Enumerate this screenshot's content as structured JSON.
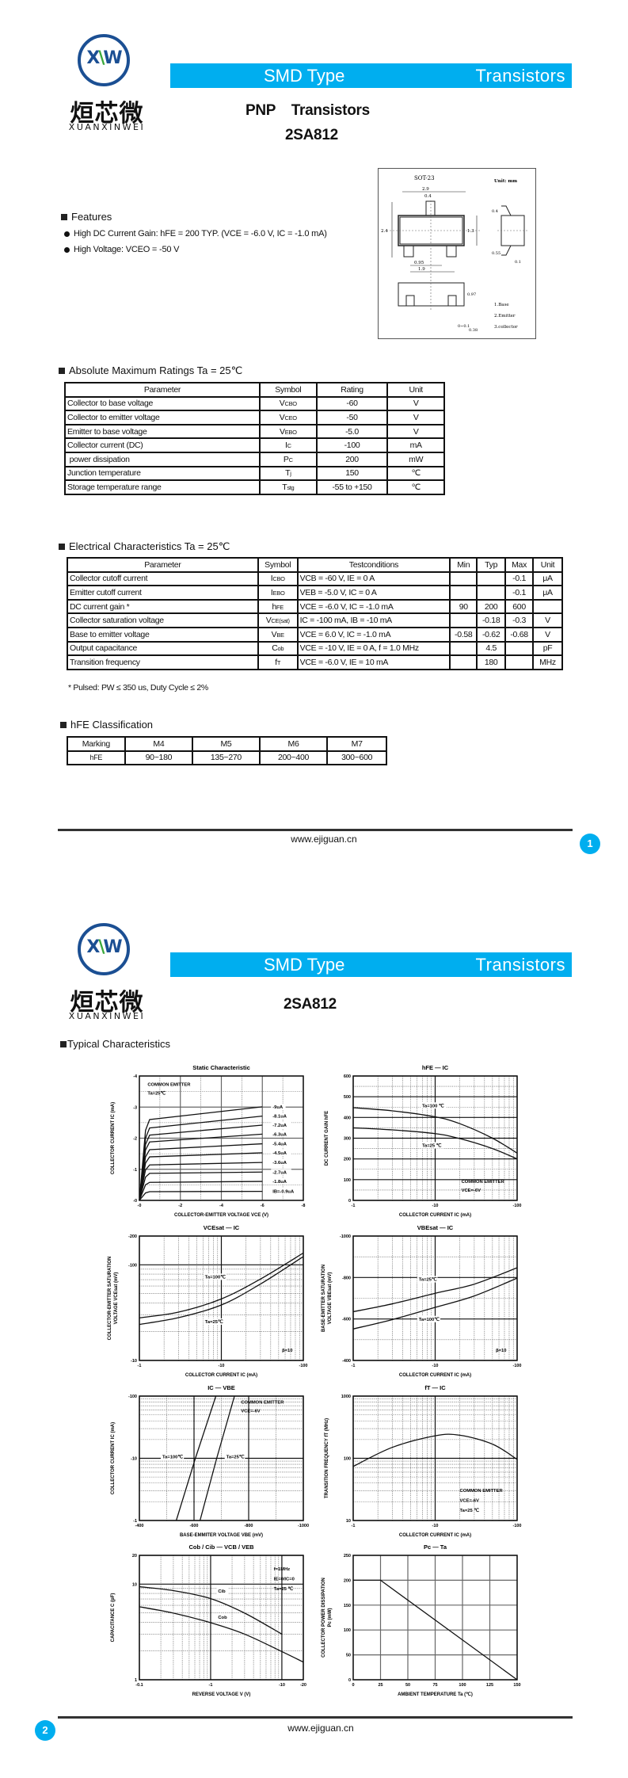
{
  "brand": {
    "logo_mark": "XW",
    "logo_cn": "烜芯微",
    "logo_en": "XUANXINWEI",
    "color": "#1b4f93",
    "accent": "#00aeef"
  },
  "banner": {
    "left": "SMD Type",
    "right": "Transistors"
  },
  "page1": {
    "type_title": "PNP    Transistors",
    "part": "2SA812",
    "package": {
      "name": "SOT-23",
      "unit": "Unit: mm",
      "dims": [
        "2.9",
        "0.4",
        "2.4",
        "1.3",
        "0.95",
        "1.9",
        "0.4",
        "0.55",
        "0.1",
        "0.97",
        "0~0.1",
        "0.38"
      ],
      "pins": [
        "1.Base",
        "2.Emitter",
        "3.collector"
      ]
    },
    "features": {
      "heading": "Features",
      "items": [
        "High DC Current Gain: hFE = 200 TYP. (VCE = -6.0 V, IC = -1.0 mA)",
        "High Voltage: VCEO = -50 V"
      ]
    },
    "abs_max": {
      "heading": "Absolute Maximum Ratings Ta = 25℃",
      "headers": [
        "Parameter",
        "Symbol",
        "Rating",
        "Unit"
      ],
      "rows": [
        {
          "param": "Collector to base voltage",
          "sym": "V",
          "sub": "CBO",
          "rating": "-60",
          "unit": "V"
        },
        {
          "param": "Collector to emitter voltage",
          "sym": "V",
          "sub": "CEO",
          "rating": "-50",
          "unit": "V"
        },
        {
          "param": "Emitter to base voltage",
          "sym": "V",
          "sub": "EBO",
          "rating": "-5.0",
          "unit": "V"
        },
        {
          "param": "Collector current (DC)",
          "sym": "I",
          "sub": "C",
          "rating": "-100",
          "unit": "mA"
        },
        {
          "param": " power dissipation",
          "sym": "P",
          "sub": "C",
          "rating": "200",
          "unit": "mW"
        },
        {
          "param": "Junction temperature",
          "sym": "T",
          "sub": "j",
          "rating": "150",
          "unit": "℃"
        },
        {
          "param": "Storage temperature range",
          "sym": "T",
          "sub": "stg",
          "rating": "-55 to +150",
          "unit": "℃"
        }
      ]
    },
    "elec": {
      "heading": "Electrical Characteristics Ta = 25℃",
      "headers": [
        "Parameter",
        "Symbol",
        "Testconditions",
        "Min",
        "Typ",
        "Max",
        "Unit"
      ],
      "rows": [
        {
          "param": "Collector cutoff current",
          "sym": "I",
          "sub": "CBO",
          "cond": "VCB = -60 V, IE = 0 A",
          "min": "",
          "typ": "",
          "max": "-0.1",
          "unit": "μA"
        },
        {
          "param": "Emitter cutoff current",
          "sym": "I",
          "sub": "EBO",
          "cond": "VEB = -5.0 V, IC = 0 A",
          "min": "",
          "typ": "",
          "max": "-0.1",
          "unit": "μA"
        },
        {
          "param": "DC current gain *",
          "sym": "h",
          "sub": "FE",
          "cond": "VCE = -6.0 V, IC = -1.0  mA",
          "min": "90",
          "typ": "200",
          "max": "600",
          "unit": ""
        },
        {
          "param": "Collector saturation voltage",
          "sym": "V",
          "sub": "CE(sat)",
          "cond": "IC = -100 mA, IB = -10 mA",
          "min": "",
          "typ": "-0.18",
          "max": "-0.3",
          "unit": "V"
        },
        {
          "param": "Base to emitter voltage",
          "sym": "V",
          "sub": "BE",
          "cond": "VCE = 6.0 V, IC = -1.0 mA",
          "min": "-0.58",
          "typ": "-0.62",
          "max": "-0.68",
          "unit": "V"
        },
        {
          "param": "Output capacitance",
          "sym": "C",
          "sub": "ob",
          "cond": "VCE = -10 V, IE = 0 A, f = 1.0 MHz",
          "min": "",
          "typ": "4.5",
          "max": "",
          "unit": "pF"
        },
        {
          "param": "Transition frequency",
          "sym": "f",
          "sub": "T",
          "cond": "VCE = -6.0 V, IE = 10 mA",
          "min": "",
          "typ": "180",
          "max": "",
          "unit": "MHz"
        }
      ],
      "footnote": "* Pulsed: PW ≤ 350  us, Duty Cycle ≤ 2%"
    },
    "hfe_class": {
      "heading": "hFE Classification",
      "row1": [
        "Marking",
        "M4",
        "M5",
        "M6",
        "M7"
      ],
      "row2": [
        "hFE",
        "90~180",
        "135~270",
        "200~400",
        "300~600"
      ]
    },
    "footer": {
      "url": "www.ejiguan.cn",
      "page": "1"
    }
  },
  "page2": {
    "part": "2SA812",
    "heading": "Typical Characteristics",
    "footer": {
      "url": "www.ejiguan.cn",
      "page": "2"
    }
  },
  "chart_data": [
    {
      "type": "line",
      "title": "Static Characteristic",
      "xlabel": "COLLECTOR-EMITTER VOLTAGE  VCE  (V)",
      "ylabel": [
        "COLLECTOR CURRENT  IC  (mA)"
      ],
      "xscale": "linear",
      "yscale": "linear",
      "xlim": [
        0,
        -8
      ],
      "ylim": [
        0,
        -4
      ],
      "xticks": [
        0,
        -2,
        -4,
        -6,
        -8
      ],
      "xticklabels": [
        "-0",
        "-2",
        "-4",
        "-6",
        "-8"
      ],
      "yticks": [
        0,
        -1,
        -2,
        -3,
        -4
      ],
      "yticklabels": [
        "-0",
        "-1",
        "-2",
        "-3",
        "-4"
      ],
      "grid": true,
      "notes": [
        "COMMON EMITTER",
        "Ta=25℃"
      ],
      "series": [
        {
          "name": "-9uA",
          "points": [
            [
              0,
              0
            ],
            [
              -0.3,
              -2.25
            ],
            [
              -0.5,
              -2.6
            ],
            [
              -6,
              -3.01
            ]
          ]
        },
        {
          "name": "-8.1uA",
          "points": [
            [
              0,
              0
            ],
            [
              -0.3,
              -2.0
            ],
            [
              -0.5,
              -2.33
            ],
            [
              -6,
              -2.71
            ]
          ]
        },
        {
          "name": "-7.2uA",
          "points": [
            [
              0,
              0
            ],
            [
              -0.3,
              -1.8
            ],
            [
              -0.5,
              -2.1
            ],
            [
              -6,
              -2.42
            ]
          ]
        },
        {
          "name": "-6.3uA",
          "points": [
            [
              0,
              0
            ],
            [
              -0.3,
              -1.62
            ],
            [
              -0.5,
              -1.88
            ],
            [
              -6,
              -2.13
            ]
          ]
        },
        {
          "name": "-5.4uA",
          "points": [
            [
              0,
              0
            ],
            [
              -0.3,
              -1.4
            ],
            [
              -0.5,
              -1.63
            ],
            [
              -6,
              -1.82
            ]
          ]
        },
        {
          "name": "-4.5uA",
          "points": [
            [
              0,
              0
            ],
            [
              -0.3,
              -1.2
            ],
            [
              -0.5,
              -1.4
            ],
            [
              -6,
              -1.53
            ]
          ]
        },
        {
          "name": "-3.6uA",
          "points": [
            [
              0,
              0
            ],
            [
              -0.3,
              -0.98
            ],
            [
              -0.5,
              -1.14
            ],
            [
              -6,
              -1.22
            ]
          ]
        },
        {
          "name": "-2.7uA",
          "points": [
            [
              0,
              0
            ],
            [
              -0.3,
              -0.75
            ],
            [
              -0.5,
              -0.87
            ],
            [
              -6,
              -0.91
            ]
          ]
        },
        {
          "name": "-1.8uA",
          "points": [
            [
              0,
              0
            ],
            [
              -0.3,
              -0.5
            ],
            [
              -0.5,
              -0.58
            ],
            [
              -6,
              -0.61
            ]
          ]
        },
        {
          "name": "IB=-0.9uA",
          "points": [
            [
              0,
              0
            ],
            [
              -0.3,
              -0.24
            ],
            [
              -0.5,
              -0.28
            ],
            [
              -6,
              -0.29
            ]
          ]
        }
      ]
    },
    {
      "type": "line",
      "title": "hFE  —  IC",
      "xlabel": "COLLECTOR CURRENT  IC  (mA)",
      "ylabel": [
        "DC CURRENT GAIN  hFE"
      ],
      "xscale": "log",
      "yscale": "linear",
      "xlim": [
        -1,
        -100
      ],
      "ylim": [
        0,
        600
      ],
      "xticks": [
        -1,
        -10,
        -100
      ],
      "xticklabels": [
        "-1",
        "-10",
        "-100"
      ],
      "yticks": [
        0,
        100,
        200,
        300,
        400,
        500,
        600
      ],
      "yticklabels": [
        "0",
        "100",
        "200",
        "300",
        "400",
        "500",
        "600"
      ],
      "grid": true,
      "notes": [
        "COMMON EMITTER",
        "VCE=-6V"
      ],
      "series": [
        {
          "name": "Ta=100 ℃",
          "points": [
            [
              -1,
              447
            ],
            [
              -3,
              432
            ],
            [
              -10,
              403
            ],
            [
              -20,
              370
            ],
            [
              -50,
              300
            ],
            [
              -100,
              228
            ]
          ]
        },
        {
          "name": "Ta=25 ℃",
          "points": [
            [
              -1,
              350
            ],
            [
              -3,
              340
            ],
            [
              -10,
              322
            ],
            [
              -20,
              298
            ],
            [
              -50,
              250
            ],
            [
              -100,
              200
            ]
          ]
        }
      ]
    },
    {
      "type": "line",
      "title": "VCEsat  —  IC",
      "xlabel": "COLLECTOR CURRENT  IC  (mA)",
      "ylabel": [
        "COLLECTOR-EMITTER SATURATION",
        "VOLTAGE  VCEsat  (mV)"
      ],
      "xscale": "log",
      "yscale": "log",
      "xlim": [
        -1,
        -100
      ],
      "ylim": [
        -10,
        -200
      ],
      "xticks": [
        -1,
        -10,
        -100
      ],
      "xticklabels": [
        "-1",
        "-10",
        "-100"
      ],
      "yticks": [
        -10,
        -100,
        -200
      ],
      "yticklabels": [
        "-10",
        "-100",
        "-200"
      ],
      "grid": true,
      "notes": [
        "β=10"
      ],
      "series": [
        {
          "name": "Ta=100℃",
          "points": [
            [
              -1,
              -27.9
            ],
            [
              -3,
              -32
            ],
            [
              -10,
              -44
            ],
            [
              -30,
              -71
            ],
            [
              -100,
              -133
            ]
          ]
        },
        {
          "name": "Ta=25℃",
          "points": [
            [
              -1,
              -23.8
            ],
            [
              -3,
              -28
            ],
            [
              -10,
              -38
            ],
            [
              -30,
              -63
            ],
            [
              -100,
              -122
            ]
          ]
        }
      ]
    },
    {
      "type": "line",
      "title": "VBEsat  —  IC",
      "xlabel": "COLLECTOR CURRENT  IC  (mA)",
      "ylabel": [
        "BASE-EMITTER SATURATION",
        "VOLTAGE  VBEsat  (mV)"
      ],
      "xscale": "log",
      "yscale": "linear",
      "xlim": [
        -1,
        -100
      ],
      "ylim": [
        -400,
        -1000
      ],
      "xticks": [
        -1,
        -10,
        -100
      ],
      "xticklabels": [
        "-1",
        "-10",
        "-100"
      ],
      "yticks": [
        -400,
        -600,
        -800,
        -1000
      ],
      "yticklabels": [
        "-400",
        "-600",
        "-800",
        "-1000"
      ],
      "grid": true,
      "notes": [
        "β=10"
      ],
      "series": [
        {
          "name": "Ta=25℃",
          "points": [
            [
              -1,
              -635
            ],
            [
              -3,
              -673
            ],
            [
              -10,
              -724
            ],
            [
              -30,
              -768
            ],
            [
              -100,
              -847
            ]
          ]
        },
        {
          "name": "Ta=100℃",
          "points": [
            [
              -1,
              -552
            ],
            [
              -3,
              -597
            ],
            [
              -10,
              -656
            ],
            [
              -30,
              -711
            ],
            [
              -100,
              -797
            ]
          ]
        }
      ]
    },
    {
      "type": "line",
      "title": "IC  —  VBE",
      "xlabel": "BASE-EMMITER VOLTAGE  VBE  (mV)",
      "ylabel": [
        "COLLECTOR CURRENT  IC  (mA)"
      ],
      "xscale": "linear",
      "yscale": "log",
      "xlim": [
        -400,
        -1000
      ],
      "ylim": [
        -1,
        -100
      ],
      "xticks": [
        -400,
        -600,
        -800,
        -1000
      ],
      "xticklabels": [
        "-400",
        "-600",
        "-800",
        "-1000"
      ],
      "yticks": [
        -1,
        -10,
        -100
      ],
      "yticklabels": [
        "-1",
        "-10",
        "-100"
      ],
      "grid": true,
      "notes": [
        "COMMON EMITTER",
        "VCE=-6V"
      ],
      "series": [
        {
          "name": "Ta=100℃",
          "points": [
            [
              -535,
              -1
            ],
            [
              -605,
              -10
            ],
            [
              -680,
              -100
            ]
          ]
        },
        {
          "name": "Ta=25℃",
          "points": [
            [
              -622,
              -1
            ],
            [
              -683,
              -10
            ],
            [
              -748,
              -100
            ]
          ]
        }
      ]
    },
    {
      "type": "line",
      "title": "fT  —  IC",
      "xlabel": "COLLECTOR CURRENT  IC  (mA)",
      "ylabel": [
        "TRANSITION FREQUENCY  fT  (MHz)"
      ],
      "xscale": "log",
      "yscale": "log",
      "xlim": [
        -1,
        -100
      ],
      "ylim": [
        10,
        1000
      ],
      "xticks": [
        -1,
        -10,
        -100
      ],
      "xticklabels": [
        "-1",
        "-10",
        "-100"
      ],
      "yticks": [
        10,
        100,
        1000
      ],
      "yticklabels": [
        "10",
        "100",
        "1000"
      ],
      "grid": true,
      "notes": [
        "COMMON EMITTER",
        "VCE=-6V",
        "Ta=25 ℃"
      ],
      "series": [
        {
          "points": [
            [
              -1,
              74
            ],
            [
              -3,
              150
            ],
            [
              -10,
              230
            ],
            [
              -20,
              235
            ],
            [
              -50,
              169
            ],
            [
              -100,
              96
            ]
          ]
        }
      ]
    },
    {
      "type": "line",
      "title": "Cob / Cib  —  VCB / VEB",
      "xlabel": "REVERSE VOLTAGE  V  (V)",
      "ylabel": [
        "CAPACITANCE  C  (pF)"
      ],
      "xscale": "log",
      "yscale": "log",
      "xlim": [
        -0.1,
        -20
      ],
      "ylim": [
        1,
        20
      ],
      "xticks": [
        -0.1,
        -1,
        -10,
        -20
      ],
      "xticklabels": [
        "-0.1",
        "-1",
        "-10",
        "-20"
      ],
      "yticks": [
        1,
        10,
        20
      ],
      "yticklabels": [
        "1",
        "10",
        "20"
      ],
      "grid": true,
      "notes": [
        "f=1MHz",
        "IE=0/IC=0",
        "Ta=25 ℃"
      ],
      "series": [
        {
          "name": "Cib",
          "points": [
            [
              -0.1,
              9.4
            ],
            [
              -0.3,
              8.55
            ],
            [
              -1,
              7.06
            ],
            [
              -3,
              4.98
            ],
            [
              -10,
              3.0
            ]
          ]
        },
        {
          "name": "Cob",
          "points": [
            [
              -0.1,
              5.8
            ],
            [
              -0.3,
              4.98
            ],
            [
              -1,
              3.95
            ],
            [
              -3,
              3.0
            ],
            [
              -10,
              1.97
            ],
            [
              -20,
              1.53
            ]
          ]
        }
      ]
    },
    {
      "type": "line",
      "title": "Pc  —  Ta",
      "xlabel": "AMBIENT TEMPERATURE  Ta  (℃)",
      "ylabel": [
        "COLLECTOR POWER DISSIPATION",
        "Pc  (mW)"
      ],
      "xscale": "linear",
      "yscale": "linear",
      "xlim": [
        0,
        150
      ],
      "ylim": [
        0,
        250
      ],
      "xticks": [
        0,
        25,
        50,
        75,
        100,
        125,
        150
      ],
      "xticklabels": [
        "0",
        "25",
        "50",
        "75",
        "100",
        "125",
        "150"
      ],
      "yticks": [
        0,
        50,
        100,
        150,
        200,
        250
      ],
      "yticklabels": [
        "0",
        "50",
        "100",
        "150",
        "200",
        "250"
      ],
      "grid": true,
      "notes": [],
      "series": [
        {
          "points": [
            [
              0,
              200
            ],
            [
              25,
              200
            ],
            [
              150,
              0
            ]
          ]
        }
      ]
    }
  ]
}
